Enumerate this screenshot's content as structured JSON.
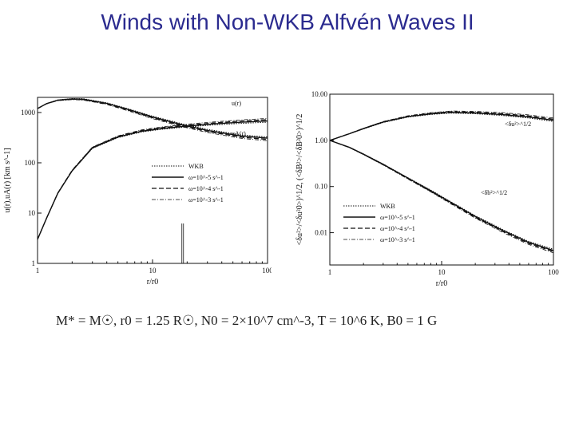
{
  "slide": {
    "title": "Winds with Non-WKB Alfvén Waves II",
    "caption": "M* = M☉, r0 = 1.25 R☉, N0 = 2×10^7 cm^-3, T = 10^6 K, B0 = 1 G"
  },
  "chart_data": [
    {
      "type": "line",
      "log_x": true,
      "log_y": true,
      "xlim": [
        1,
        100
      ],
      "ylim": [
        1,
        2000
      ],
      "x_ticks": [
        "1",
        "10",
        "100"
      ],
      "y_ticks": [
        "1",
        "10",
        "100",
        "1000"
      ],
      "xlabel": "r/r0",
      "ylabel": "u(r),uA(r) [km s^-1]",
      "annotations": [
        "u(r)",
        "uA(r)"
      ],
      "legend": [
        "WKB",
        "ω=10^-5 s^-1",
        "ω=10^-4 s^-1",
        "ω=10^-3 s^-1"
      ],
      "legend_position": "center-right",
      "series": [
        {
          "name": "u(r)",
          "x": [
            1,
            1.2,
            1.5,
            2,
            3,
            5,
            8,
            12,
            20,
            35,
            60,
            100
          ],
          "y": [
            3,
            8,
            25,
            70,
            200,
            330,
            430,
            490,
            550,
            610,
            660,
            700
          ]
        },
        {
          "name": "uA(r)",
          "x": [
            1,
            1.2,
            1.5,
            2,
            2.5,
            4,
            6,
            10,
            18,
            30,
            60,
            100
          ],
          "y": [
            1200,
            1500,
            1750,
            1850,
            1820,
            1500,
            1150,
            800,
            560,
            430,
            330,
            300
          ]
        }
      ]
    },
    {
      "type": "line",
      "log_x": true,
      "log_y": true,
      "xlim": [
        1,
        100
      ],
      "ylim": [
        0.002,
        10
      ],
      "x_ticks": [
        "1",
        "10",
        "100"
      ],
      "y_ticks": [
        "0.01",
        "0.10",
        "1.00",
        "10.00"
      ],
      "xlabel": "r/r0",
      "ylabel": "<δu²>/<δu²0>)^1/2, (<δB²>/<δB²0>)^1/2",
      "annotations": [
        "<δu²>^1/2",
        "<δb²>^1/2"
      ],
      "legend": [
        "WKB",
        "ω=10^-5 s^-1",
        "ω=10^-4 s^-1",
        "ω=10^-3 s^-1"
      ],
      "legend_position": "bottom-left",
      "series": [
        {
          "name": "<δu²>^1/2",
          "x": [
            1,
            1.5,
            2,
            3,
            5,
            8,
            12,
            20,
            35,
            60,
            100
          ],
          "y": [
            1.0,
            1.4,
            1.8,
            2.5,
            3.3,
            3.8,
            4.1,
            4.0,
            3.7,
            3.3,
            2.8
          ]
        },
        {
          "name": "<δb²>^1/2",
          "x": [
            1,
            1.5,
            2,
            3,
            5,
            8,
            12,
            20,
            35,
            60,
            100
          ],
          "y": [
            1.0,
            0.7,
            0.5,
            0.3,
            0.15,
            0.08,
            0.045,
            0.022,
            0.011,
            0.006,
            0.004
          ]
        }
      ]
    }
  ]
}
